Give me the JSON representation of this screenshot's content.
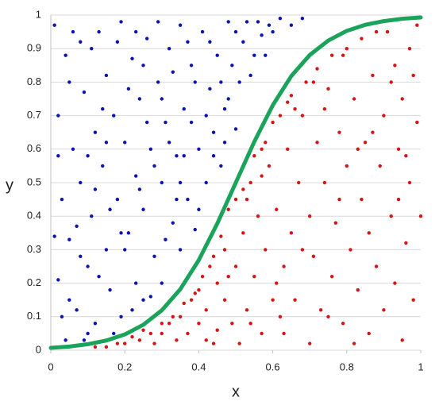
{
  "chart_data": {
    "type": "scatter",
    "x_label": "x",
    "y_label": "y",
    "xlim": [
      0,
      1
    ],
    "ylim": [
      0,
      1
    ],
    "xticks": [
      0,
      0.2,
      0.4,
      0.6,
      0.8,
      1
    ],
    "yticks": [
      0,
      0.1,
      0.2,
      0.3,
      0.4,
      0.5,
      0.6,
      0.7,
      0.8,
      0.9,
      1
    ],
    "grid": true,
    "series": [
      {
        "mode": "markers",
        "color": "#0a14b4",
        "x": [
          0.01,
          0.02,
          0.03,
          0.02,
          0.04,
          0.05,
          0.06,
          0.07,
          0.08,
          0.08,
          0.09,
          0.1,
          0.11,
          0.12,
          0.12,
          0.13,
          0.14,
          0.15,
          0.15,
          0.16,
          0.17,
          0.18,
          0.19,
          0.19,
          0.2,
          0.21,
          0.22,
          0.23,
          0.23,
          0.24,
          0.25,
          0.25,
          0.26,
          0.27,
          0.28,
          0.29,
          0.3,
          0.3,
          0.31,
          0.32,
          0.33,
          0.34,
          0.35,
          0.35,
          0.36,
          0.37,
          0.38,
          0.39,
          0.4,
          0.41,
          0.42,
          0.43,
          0.44,
          0.45,
          0.46,
          0.47,
          0.48,
          0.49,
          0.5,
          0.52,
          0.54,
          0.56,
          0.58,
          0.6,
          0.62,
          0.65,
          0.68,
          0.03,
          0.05,
          0.07,
          0.09,
          0.1,
          0.11,
          0.13,
          0.14,
          0.16,
          0.17,
          0.18,
          0.2,
          0.21,
          0.22,
          0.24,
          0.26,
          0.27,
          0.28,
          0.29,
          0.31,
          0.32,
          0.33,
          0.34,
          0.36,
          0.37,
          0.38,
          0.39,
          0.4,
          0.42,
          0.43,
          0.44,
          0.46,
          0.47,
          0.48,
          0.5,
          0.51,
          0.53,
          0.55,
          0.57,
          0.59,
          0.02,
          0.04,
          0.06,
          0.08,
          0.12,
          0.15,
          0.19,
          0.23,
          0.25,
          0.3,
          0.35,
          0.01,
          0.05,
          0.1
        ],
        "y": [
          0.97,
          0.7,
          0.45,
          0.21,
          0.88,
          0.33,
          0.6,
          0.12,
          0.92,
          0.5,
          0.77,
          0.25,
          0.4,
          0.65,
          0.08,
          0.95,
          0.55,
          0.3,
          0.82,
          0.18,
          0.7,
          0.45,
          0.98,
          0.1,
          0.62,
          0.35,
          0.87,
          0.2,
          0.52,
          0.75,
          0.15,
          0.42,
          0.93,
          0.6,
          0.28,
          0.8,
          0.5,
          0.2,
          0.68,
          0.9,
          0.38,
          0.58,
          0.97,
          0.3,
          0.72,
          0.45,
          0.85,
          0.36,
          0.6,
          0.95,
          0.5,
          0.78,
          0.65,
          0.88,
          0.55,
          0.72,
          0.98,
          0.85,
          0.66,
          0.92,
          0.82,
          0.98,
          0.88,
          0.95,
          0.99,
          0.97,
          0.99,
          0.1,
          0.8,
          0.37,
          0.03,
          0.58,
          0.9,
          0.22,
          0.72,
          0.42,
          0.05,
          0.92,
          0.3,
          0.78,
          0.12,
          0.48,
          0.68,
          0.16,
          0.55,
          0.98,
          0.33,
          0.62,
          0.83,
          0.45,
          0.58,
          0.92,
          0.68,
          0.8,
          0.42,
          0.7,
          0.92,
          0.58,
          0.8,
          0.62,
          0.75,
          0.95,
          0.8,
          0.98,
          0.88,
          0.94,
          0.97,
          0.58,
          0.03,
          0.95,
          0.28,
          0.48,
          0.62,
          0.35,
          0.95,
          0.85,
          0.75,
          0.5,
          0.34,
          0.15,
          0.05
        ]
      },
      {
        "mode": "markers",
        "color": "#d71414",
        "x": [
          0.12,
          0.15,
          0.18,
          0.2,
          0.22,
          0.24,
          0.25,
          0.27,
          0.28,
          0.3,
          0.3,
          0.32,
          0.33,
          0.34,
          0.35,
          0.36,
          0.37,
          0.38,
          0.39,
          0.4,
          0.4,
          0.41,
          0.42,
          0.42,
          0.43,
          0.44,
          0.45,
          0.45,
          0.46,
          0.47,
          0.47,
          0.48,
          0.49,
          0.5,
          0.5,
          0.51,
          0.52,
          0.52,
          0.53,
          0.54,
          0.55,
          0.55,
          0.56,
          0.57,
          0.57,
          0.58,
          0.59,
          0.6,
          0.6,
          0.61,
          0.62,
          0.63,
          0.63,
          0.64,
          0.65,
          0.65,
          0.66,
          0.67,
          0.68,
          0.69,
          0.7,
          0.7,
          0.71,
          0.72,
          0.72,
          0.73,
          0.74,
          0.75,
          0.76,
          0.76,
          0.77,
          0.78,
          0.79,
          0.8,
          0.8,
          0.81,
          0.82,
          0.83,
          0.84,
          0.84,
          0.85,
          0.86,
          0.86,
          0.87,
          0.88,
          0.89,
          0.9,
          0.9,
          0.91,
          0.92,
          0.93,
          0.93,
          0.94,
          0.95,
          0.95,
          0.96,
          0.97,
          0.97,
          0.98,
          0.99,
          0.99,
          1,
          0.62,
          0.68,
          0.74,
          0.78,
          0.82,
          0.87,
          0.92,
          0.96,
          0.54,
          0.58,
          0.66,
          0.71,
          0.75,
          0.79,
          0.83,
          0.88,
          0.94,
          0.98,
          0.44,
          0.48,
          0.53,
          0.57,
          0.61,
          0.64
        ],
        "y": [
          0.01,
          0.01,
          0.02,
          0.02,
          0.04,
          0.03,
          0.06,
          0.05,
          0.02,
          0.05,
          0.08,
          0.08,
          0.1,
          0.03,
          0.1,
          0.14,
          0.05,
          0.15,
          0.17,
          0.08,
          0.18,
          0.22,
          0.03,
          0.12,
          0.25,
          0.28,
          0.06,
          0.2,
          0.34,
          0.15,
          0.3,
          0.42,
          0.08,
          0.25,
          0.45,
          0.02,
          0.35,
          0.48,
          0.12,
          0.5,
          0.22,
          0.58,
          0.4,
          0.05,
          0.6,
          0.3,
          0.55,
          0.15,
          0.68,
          0.42,
          0.7,
          0.25,
          0.05,
          0.6,
          0.35,
          0.76,
          0.15,
          0.5,
          0.7,
          0.8,
          0.02,
          0.4,
          0.28,
          0.62,
          0.84,
          0.12,
          0.5,
          0.78,
          0.22,
          0.88,
          0.38,
          0.65,
          0.08,
          0.55,
          0.9,
          0.3,
          0.75,
          0.18,
          0.45,
          0.93,
          0.62,
          0.05,
          0.35,
          0.82,
          0.25,
          0.55,
          0.7,
          0.12,
          0.95,
          0.4,
          0.85,
          0.2,
          0.6,
          0.03,
          0.75,
          0.32,
          0.9,
          0.5,
          0.15,
          0.68,
          0.97,
          0.4,
          0.1,
          0.3,
          0.72,
          0.45,
          0.02,
          0.65,
          0.8,
          0.58,
          0.08,
          0.62,
          0.72,
          0.8,
          0.1,
          0.88,
          0.6,
          0.95,
          0.45,
          0.82,
          0.02,
          0.22,
          0.45,
          0.52,
          0.2,
          0.74
        ]
      },
      {
        "mode": "line",
        "color": "#1aa35a",
        "x": [
          0,
          0.05,
          0.1,
          0.15,
          0.2,
          0.25,
          0.3,
          0.35,
          0.4,
          0.45,
          0.5,
          0.55,
          0.6,
          0.65,
          0.7,
          0.75,
          0.8,
          0.85,
          0.9,
          0.95,
          1
        ],
        "y": [
          0.007,
          0.011,
          0.018,
          0.029,
          0.047,
          0.076,
          0.119,
          0.182,
          0.269,
          0.378,
          0.5,
          0.622,
          0.731,
          0.818,
          0.881,
          0.924,
          0.953,
          0.971,
          0.982,
          0.989,
          0.993
        ]
      }
    ]
  }
}
